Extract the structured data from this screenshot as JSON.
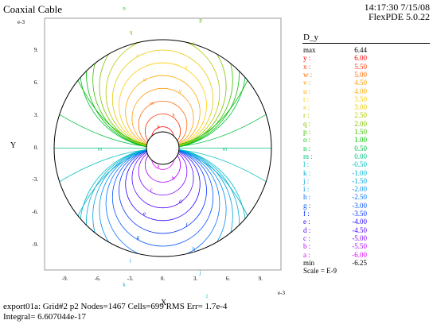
{
  "header": {
    "title": "Coaxial Cable",
    "timestamp": "14:17:30 7/15/08",
    "version": "FlexPDE 5.0.22"
  },
  "footer": {
    "line1": "export01a:  Grid#2  p2  Nodes=1467 Cells=699 RMS Err= 1.7e-4",
    "line2": "Integral=  6.607044e-17"
  },
  "legend": {
    "title": "D_y",
    "scale_note": "Scale = E-9",
    "entries": [
      {
        "symbol": "max",
        "value": "6.44",
        "color": "#000000"
      },
      {
        "symbol": "y :",
        "value": "6.00",
        "color": "#ff0000"
      },
      {
        "symbol": "x :",
        "value": "5.50",
        "color": "#ff3300"
      },
      {
        "symbol": "w :",
        "value": "5.00",
        "color": "#ff6600"
      },
      {
        "symbol": "v :",
        "value": "4.50",
        "color": "#ff9900"
      },
      {
        "symbol": "u :",
        "value": "4.00",
        "color": "#ffaa00"
      },
      {
        "symbol": "t :",
        "value": "3.50",
        "color": "#ffcc00"
      },
      {
        "symbol": "s :",
        "value": "3.00",
        "color": "#e6c800"
      },
      {
        "symbol": "r :",
        "value": "2.50",
        "color": "#b4c800"
      },
      {
        "symbol": "q :",
        "value": "2.00",
        "color": "#80c000"
      },
      {
        "symbol": "p :",
        "value": "1.50",
        "color": "#40c000"
      },
      {
        "symbol": "o :",
        "value": "1.00",
        "color": "#00c000"
      },
      {
        "symbol": "n :",
        "value": "0.50",
        "color": "#00c040"
      },
      {
        "symbol": "m :",
        "value": "0.00",
        "color": "#00c080"
      },
      {
        "symbol": "l :",
        "value": "-0.50",
        "color": "#00c0c0"
      },
      {
        "symbol": "k :",
        "value": "-1.00",
        "color": "#00b0d0"
      },
      {
        "symbol": "j :",
        "value": "-1.50",
        "color": "#00a0e0"
      },
      {
        "symbol": "i :",
        "value": "-2.00",
        "color": "#0090f0"
      },
      {
        "symbol": "h :",
        "value": "-2.50",
        "color": "#0070ff"
      },
      {
        "symbol": "g :",
        "value": "-3.00",
        "color": "#0050ff"
      },
      {
        "symbol": "f :",
        "value": "-3.50",
        "color": "#0030ff"
      },
      {
        "symbol": "e :",
        "value": "-4.00",
        "color": "#2000ff"
      },
      {
        "symbol": "d :",
        "value": "-4.50",
        "color": "#5000ff"
      },
      {
        "symbol": "c :",
        "value": "-5.00",
        "color": "#8000ff"
      },
      {
        "symbol": "b :",
        "value": "-5.50",
        "color": "#b000ff"
      },
      {
        "symbol": "a :",
        "value": "-6.00",
        "color": "#e000ff"
      },
      {
        "symbol": "min",
        "value": "-6.25",
        "color": "#000000"
      }
    ]
  },
  "chart_data": {
    "type": "contour",
    "title": "Coaxial Cable",
    "xlabel": "X",
    "ylabel": "Y",
    "x_exponent_label": "e-3",
    "y_exponent_label": "e-3",
    "xlim": [
      -10.5,
      10.5
    ],
    "ylim": [
      -10.5,
      10.5
    ],
    "x_ticks": [
      {
        "v": -9,
        "label": "-9."
      },
      {
        "v": -6,
        "label": "-6."
      },
      {
        "v": -3,
        "label": "-3."
      },
      {
        "v": 0,
        "label": "0."
      },
      {
        "v": 3,
        "label": "3."
      },
      {
        "v": 6,
        "label": "6."
      },
      {
        "v": 9,
        "label": "9."
      }
    ],
    "y_ticks": [
      {
        "v": 9,
        "label": "9."
      },
      {
        "v": 6,
        "label": "6."
      },
      {
        "v": 3,
        "label": "3."
      },
      {
        "v": 0,
        "label": "0."
      },
      {
        "v": -3,
        "label": "-3."
      },
      {
        "v": -6,
        "label": "-6."
      },
      {
        "v": -9,
        "label": "-9."
      }
    ],
    "outer_radius": 10,
    "inner_radius": 1.5,
    "variable": "D_y",
    "max": 6.44,
    "min": -6.25,
    "scale": "E-9"
  }
}
